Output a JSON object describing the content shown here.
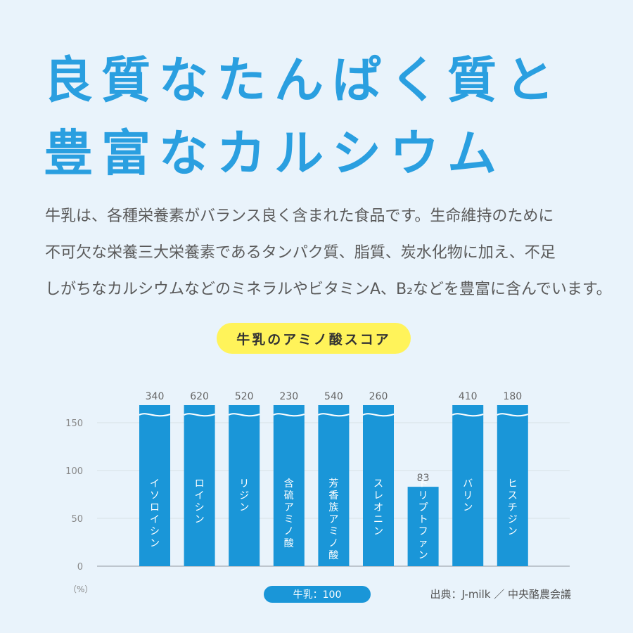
{
  "headline": {
    "line1": "良質なたんぱく質と",
    "line2": "豊富なカルシウム"
  },
  "body": {
    "line1": "牛乳は、各種栄養素がバランス良く含まれた食品です。生命維持のために",
    "line2": "不可欠な栄養三大栄養素であるタンパク質、脂質、炭水化物に加え、不足",
    "line3": "しがちなカルシウムなどのミネラルやビタミンA、B₂などを豊富に含んでいます。"
  },
  "chart_data": {
    "type": "bar",
    "title": "牛乳のアミノ酸スコア",
    "ylabel": "（%）",
    "ylim": [
      0,
      150
    ],
    "yticks": [
      0,
      50,
      100,
      150
    ],
    "grid": true,
    "categories": [
      "イソロイシン",
      "ロイシン",
      "リジン",
      "含硫アミノ酸",
      "芳香族アミノ酸",
      "スレオニン",
      "トリプトファン",
      "バリン",
      "ヒスチジン"
    ],
    "values": [
      340,
      620,
      520,
      230,
      540,
      260,
      83,
      410,
      180
    ],
    "value_labels": [
      "340",
      "620",
      "520",
      "230",
      "540",
      "260",
      "83",
      "410",
      "180"
    ],
    "legend": "牛乳：100",
    "bar_color": "#1a96d8"
  },
  "source": "出典：J-milk ／ 中央酪農会議"
}
